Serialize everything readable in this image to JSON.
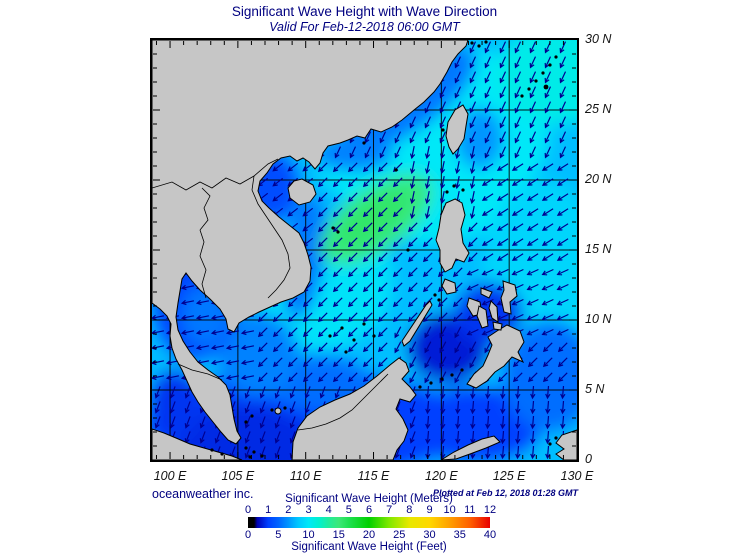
{
  "title": "Significant Wave Height with Wave Direction",
  "subtitle": "Valid For Feb-12-2018 06:00 GMT",
  "footer": {
    "credit": "oceanweather inc.",
    "plotted_note": "Plotted at Feb 12, 2018 01:28 GMT"
  },
  "colors": {
    "text_navy": "#000080",
    "axis_text": "#141414",
    "land_gray": "#c6c6c6",
    "frame_black": "#000000",
    "arrow_navy": "#000090"
  },
  "axes": {
    "lon_range_deg_e": [
      98.67,
      130
    ],
    "lat_range_deg_n": [
      0,
      30
    ],
    "grid_interval_deg": 5,
    "minor_tick_deg": 1,
    "x_ticks": [
      {
        "lon": 100,
        "label": "100 E"
      },
      {
        "lon": 105,
        "label": "105 E"
      },
      {
        "lon": 110,
        "label": "110 E"
      },
      {
        "lon": 115,
        "label": "115 E"
      },
      {
        "lon": 120,
        "label": "120 E"
      },
      {
        "lon": 125,
        "label": "125 E"
      },
      {
        "lon": 130,
        "label": "130 E"
      }
    ],
    "y_ticks": [
      {
        "lat": 30,
        "label": "30 N"
      },
      {
        "lat": 25,
        "label": "25 N"
      },
      {
        "lat": 20,
        "label": "20 N"
      },
      {
        "lat": 15,
        "label": "15 N"
      },
      {
        "lat": 10,
        "label": "10 N"
      },
      {
        "lat": 5,
        "label": "5 N"
      },
      {
        "lat": 0,
        "label": "0"
      }
    ]
  },
  "legend": {
    "meters_title": "Significant Wave Height (Meters)",
    "feet_title": "Significant Wave Height (Feet)",
    "meters_ticks": [
      0,
      1,
      2,
      3,
      4,
      5,
      6,
      7,
      8,
      9,
      10,
      11,
      12
    ],
    "feet_ticks": [
      0,
      5,
      10,
      15,
      20,
      25,
      30,
      35,
      40
    ],
    "max_meters": 12,
    "max_feet": 40
  },
  "chart_data": {
    "type": "heatmap",
    "title": "Significant Wave Height with Wave Direction",
    "valid_time": "Feb-12-2018 06:00 GMT",
    "plotted_time": "Feb 12, 2018 01:28 GMT",
    "region": "South China Sea / Western Pacific",
    "lon_range_deg_e": [
      98.67,
      130
    ],
    "lat_range_deg_n": [
      0,
      30
    ],
    "units_primary": "meters",
    "units_secondary": "feet",
    "colormap_stops_m": [
      [
        0.0,
        "#000000"
      ],
      [
        0.3,
        "#000000"
      ],
      [
        0.45,
        "#0000b4"
      ],
      [
        1.0,
        "#0040ff"
      ],
      [
        1.5,
        "#0064ff"
      ],
      [
        2.0,
        "#0096ff"
      ],
      [
        2.5,
        "#00c8ff"
      ],
      [
        3.0,
        "#00e8f8"
      ],
      [
        3.5,
        "#00f0d0"
      ],
      [
        4.0,
        "#20ec9c"
      ],
      [
        4.5,
        "#3ce878"
      ],
      [
        5.0,
        "#1ee050"
      ],
      [
        6.0,
        "#00d000"
      ],
      [
        7.0,
        "#80e800"
      ],
      [
        8.0,
        "#e8e800"
      ],
      [
        9.0,
        "#ffd800"
      ],
      [
        10.0,
        "#ffa000"
      ],
      [
        11.0,
        "#ff6000"
      ],
      [
        12.0,
        "#e80000"
      ]
    ],
    "base_value_m": 2.4,
    "field_regions": [
      {
        "name": "ne-scs-cyan",
        "lon": 119.0,
        "lat": 23.5,
        "rlon": 9.0,
        "rlat": 6.5,
        "rot": 0,
        "value_m": 3.0
      },
      {
        "name": "luzon-strait",
        "lon": 119.5,
        "lat": 19.5,
        "rlon": 6.0,
        "rlat": 4.0,
        "rot": 0,
        "value_m": 3.0
      },
      {
        "name": "philippine-sea-east",
        "lon": 127.5,
        "lat": 13.0,
        "rlon": 4.5,
        "rlat": 7.0,
        "rot": 0,
        "value_m": 2.7
      },
      {
        "name": "philippine-sea-ne",
        "lon": 128.5,
        "lat": 27.5,
        "rlon": 4.5,
        "rlat": 3.5,
        "rot": 0,
        "value_m": 3.2
      },
      {
        "name": "china-coast-blue",
        "lon": 117.5,
        "lat": 25.8,
        "rlon": 6.0,
        "rlat": 2.3,
        "rot": -35,
        "value_m": 1.7
      },
      {
        "name": "china-coast-west",
        "lon": 113.5,
        "lat": 21.9,
        "rlon": 3.0,
        "rlat": 1.3,
        "rot": 0,
        "value_m": 1.8
      },
      {
        "name": "taiwan-east",
        "lon": 122.8,
        "lat": 23.0,
        "rlon": 1.8,
        "rlat": 2.2,
        "rot": 0,
        "value_m": 2.0
      },
      {
        "name": "central-cyan-sw",
        "lon": 111.5,
        "lat": 12.5,
        "rlon": 5.0,
        "rlat": 4.5,
        "rot": -30,
        "value_m": 2.9
      },
      {
        "name": "south-low-band",
        "lon": 110.0,
        "lat": 2.5,
        "rlon": 12.0,
        "rlat": 4.0,
        "rot": 0,
        "value_m": 1.0
      },
      {
        "name": "karimata",
        "lon": 105.5,
        "lat": 1.0,
        "rlon": 5.0,
        "rlat": 3.0,
        "rot": 0,
        "value_m": 0.8
      },
      {
        "name": "celebes-sea",
        "lon": 122.5,
        "lat": 2.5,
        "rlon": 5.0,
        "rlat": 2.8,
        "rot": 0,
        "value_m": 1.0
      },
      {
        "name": "east-mindanao",
        "lon": 128.0,
        "lat": 6.0,
        "rlon": 3.5,
        "rlat": 4.0,
        "rot": 0,
        "value_m": 1.6
      },
      {
        "name": "nw-borneo-shelf",
        "lon": 111.0,
        "lat": 5.5,
        "rlon": 4.0,
        "rlat": 2.0,
        "rot": 0,
        "value_m": 1.6
      },
      {
        "name": "sw-shelf",
        "lon": 106.5,
        "lat": 7.5,
        "rlon": 3.0,
        "rlat": 3.0,
        "rot": 0,
        "value_m": 1.8
      },
      {
        "name": "gulf-of-thailand",
        "lon": 101.8,
        "lat": 11.0,
        "rlon": 3.2,
        "rlat": 4.0,
        "rot": 0,
        "value_m": 1.1
      },
      {
        "name": "gulf-thailand-inner",
        "lon": 102.6,
        "lat": 10.3,
        "rlon": 1.8,
        "rlat": 2.2,
        "rot": 0,
        "value_m": 1.7
      },
      {
        "name": "malacca",
        "lon": 100.3,
        "lat": 4.0,
        "rlon": 2.0,
        "rlat": 2.5,
        "rot": 0,
        "value_m": 0.9
      },
      {
        "name": "gulf-of-tonkin",
        "lon": 107.5,
        "lat": 19.5,
        "rlon": 2.2,
        "rlat": 2.6,
        "rot": 0,
        "value_m": 1.2
      },
      {
        "name": "vietnam-coast-band",
        "lon": 109.9,
        "lat": 14.5,
        "rlon": 1.5,
        "rlat": 4.5,
        "rot": 8,
        "value_m": 1.7
      },
      {
        "name": "sulu-sea",
        "lon": 120.5,
        "lat": 8.0,
        "rlon": 3.0,
        "rlat": 2.5,
        "rot": 0,
        "value_m": 0.7
      },
      {
        "name": "visayas-low",
        "lon": 123.5,
        "lat": 10.5,
        "rlon": 2.5,
        "rlat": 2.2,
        "rot": 0,
        "value_m": 0.9
      },
      {
        "name": "central-green-core",
        "lon": 115.2,
        "lat": 17.2,
        "rlon": 4.8,
        "rlat": 2.2,
        "rot": -35,
        "value_m": 4.4
      },
      {
        "name": "central-green-inner",
        "lon": 115.0,
        "lat": 17.3,
        "rlon": 3.0,
        "rlat": 1.1,
        "rot": -35,
        "value_m": 4.7
      }
    ],
    "arrow_spacing_px": 15,
    "arrow_default_dir_deg": 225,
    "arrow_regions": [
      {
        "lon": [
          98.0,
          106.8
        ],
        "lat": [
          5.5,
          14.5
        ],
        "dir": 258
      },
      {
        "lon": [
          104.0,
          111.0
        ],
        "lat": [
          15.5,
          22.0
        ],
        "dir": 232
      },
      {
        "lon": [
          117.5,
          123.0
        ],
        "lat": [
          17.0,
          22.0
        ],
        "dir": 192
      },
      {
        "lon": [
          111.0,
          130.5
        ],
        "lat": [
          21.5,
          30.5
        ],
        "dir": 205
      },
      {
        "lon": [
          123.0,
          130.5
        ],
        "lat": [
          14.0,
          21.5
        ],
        "dir": 238
      },
      {
        "lon": [
          121.5,
          130.5
        ],
        "lat": [
          9.0,
          14.0
        ],
        "dir": 245
      },
      {
        "lon": [
          126.0,
          130.5
        ],
        "lat": [
          5.0,
          9.0
        ],
        "dir": 225
      },
      {
        "lon": [
          116.0,
          123.5
        ],
        "lat": [
          5.0,
          9.5
        ],
        "dir": 208
      },
      {
        "lon": [
          119.0,
          130.5
        ],
        "lat": [
          -0.5,
          5.0
        ],
        "dir": 185
      },
      {
        "lon": [
          98.0,
          119.0
        ],
        "lat": [
          -0.5,
          5.5
        ],
        "dir": 200
      }
    ]
  }
}
